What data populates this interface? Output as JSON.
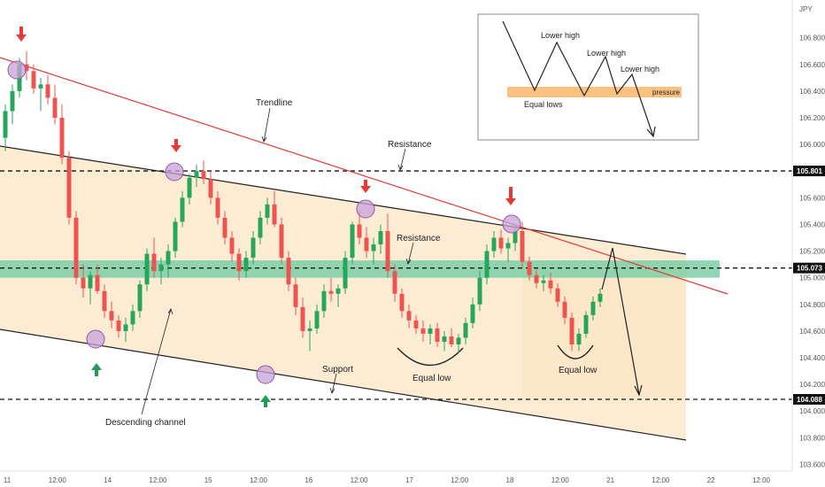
{
  "chart_data": {
    "type": "candlestick",
    "currency_label": "JPY",
    "ylim": [
      103.55,
      107.05
    ],
    "y_ticks": [
      103.6,
      103.8,
      104.0,
      104.2,
      104.4,
      104.6,
      104.8,
      105.0,
      105.2,
      105.4,
      105.6,
      105.8,
      106.0,
      106.2,
      106.4,
      106.6,
      106.8
    ],
    "y_tick_labels": [
      "103.600",
      "103.800",
      "104.000",
      "104.200",
      "104.400",
      "104.600",
      "104.800",
      "105.000",
      "105.200",
      "105.400",
      "105.600",
      "105.800",
      "106.000",
      "106.200",
      "106.400",
      "106.600",
      "106.800"
    ],
    "x_ticks": [
      "11",
      "12:00",
      "14",
      "12:00",
      "15",
      "12:00",
      "16",
      "12:00",
      "17",
      "12:00",
      "18",
      "12:00",
      "21",
      "12:00",
      "22",
      "12:00"
    ],
    "levels": [
      {
        "label": "105.801",
        "value": 105.801,
        "style": "dashed"
      },
      {
        "label": "105.073",
        "value": 105.073,
        "style": "dashed"
      },
      {
        "label": "104.088",
        "value": 104.088,
        "style": "dashed"
      }
    ],
    "resistance_zone": [
      105.0,
      105.13
    ],
    "annotations": {
      "trendline": "Trendline",
      "resistance_top": "Resistance",
      "resistance_mid": "Resistance",
      "support": "Support",
      "descending_channel": "Descending channel",
      "equal_low_1": "Equal low",
      "equal_low_2": "Equal low"
    },
    "inset": {
      "lower_high_1": "Lower high",
      "lower_high_2": "Lower high",
      "lower_high_3": "Lower high",
      "pressure": "pressure",
      "equal_lows": "Equal lows"
    },
    "candles": [
      [
        106.05,
        106.3,
        105.95,
        106.25
      ],
      [
        106.25,
        106.45,
        106.15,
        106.4
      ],
      [
        106.4,
        106.65,
        106.35,
        106.6
      ],
      [
        106.6,
        106.7,
        106.48,
        106.55
      ],
      [
        106.55,
        106.6,
        106.38,
        106.42
      ],
      [
        106.42,
        106.5,
        106.25,
        106.45
      ],
      [
        106.45,
        106.52,
        106.3,
        106.35
      ],
      [
        106.35,
        106.45,
        106.15,
        106.2
      ],
      [
        106.2,
        106.3,
        105.85,
        105.9
      ],
      [
        105.9,
        105.95,
        105.4,
        105.45
      ],
      [
        105.45,
        105.5,
        104.95,
        105.0
      ],
      [
        105.0,
        105.1,
        104.85,
        104.92
      ],
      [
        104.92,
        105.05,
        104.8,
        105.02
      ],
      [
        105.02,
        105.1,
        104.88,
        104.9
      ],
      [
        104.9,
        104.95,
        104.7,
        104.75
      ],
      [
        104.75,
        104.82,
        104.62,
        104.68
      ],
      [
        104.68,
        104.72,
        104.55,
        104.6
      ],
      [
        104.6,
        104.7,
        104.52,
        104.65
      ],
      [
        104.65,
        104.8,
        104.6,
        104.75
      ],
      [
        104.75,
        104.98,
        104.7,
        104.95
      ],
      [
        104.95,
        105.22,
        104.9,
        105.18
      ],
      [
        105.18,
        105.3,
        105.0,
        105.05
      ],
      [
        105.05,
        105.15,
        104.95,
        105.1
      ],
      [
        105.1,
        105.25,
        105.0,
        105.2
      ],
      [
        105.2,
        105.45,
        105.15,
        105.42
      ],
      [
        105.42,
        105.65,
        105.38,
        105.6
      ],
      [
        105.6,
        105.78,
        105.55,
        105.75
      ],
      [
        105.75,
        105.85,
        105.68,
        105.8
      ],
      [
        105.8,
        105.88,
        105.7,
        105.74
      ],
      [
        105.74,
        105.8,
        105.55,
        105.6
      ],
      [
        105.6,
        105.65,
        105.4,
        105.45
      ],
      [
        105.45,
        105.5,
        105.25,
        105.3
      ],
      [
        105.3,
        105.35,
        105.12,
        105.18
      ],
      [
        105.18,
        105.22,
        104.98,
        105.05
      ],
      [
        105.05,
        105.2,
        105.0,
        105.15
      ],
      [
        105.15,
        105.35,
        105.1,
        105.3
      ],
      [
        105.3,
        105.5,
        105.25,
        105.45
      ],
      [
        105.45,
        105.6,
        105.4,
        105.55
      ],
      [
        105.55,
        105.65,
        105.38,
        105.4
      ],
      [
        105.4,
        105.45,
        105.1,
        105.15
      ],
      [
        105.15,
        105.2,
        104.9,
        104.95
      ],
      [
        104.95,
        105.0,
        104.72,
        104.78
      ],
      [
        104.78,
        104.85,
        104.55,
        104.6
      ],
      [
        104.6,
        104.68,
        104.45,
        104.62
      ],
      [
        104.62,
        104.8,
        104.58,
        104.75
      ],
      [
        104.75,
        104.95,
        104.7,
        104.9
      ],
      [
        104.9,
        105.0,
        104.82,
        104.88
      ],
      [
        104.88,
        104.95,
        104.78,
        104.92
      ],
      [
        104.92,
        105.2,
        104.88,
        105.15
      ],
      [
        105.15,
        105.42,
        105.1,
        105.4
      ],
      [
        105.4,
        105.5,
        105.25,
        105.3
      ],
      [
        105.3,
        105.38,
        105.15,
        105.2
      ],
      [
        105.2,
        105.3,
        105.1,
        105.25
      ],
      [
        105.25,
        105.4,
        105.18,
        105.35
      ],
      [
        105.35,
        105.48,
        105.0,
        105.05
      ],
      [
        105.05,
        105.1,
        104.82,
        104.88
      ],
      [
        104.88,
        104.92,
        104.7,
        104.75
      ],
      [
        104.75,
        104.8,
        104.62,
        104.68
      ],
      [
        104.68,
        104.72,
        104.58,
        104.62
      ],
      [
        104.62,
        104.68,
        104.52,
        104.58
      ],
      [
        104.58,
        104.65,
        104.5,
        104.62
      ],
      [
        104.62,
        104.66,
        104.48,
        104.52
      ],
      [
        104.52,
        104.6,
        104.45,
        104.56
      ],
      [
        104.56,
        104.62,
        104.48,
        104.5
      ],
      [
        104.5,
        104.58,
        104.44,
        104.55
      ],
      [
        104.55,
        104.7,
        104.5,
        104.66
      ],
      [
        104.66,
        104.85,
        104.62,
        104.8
      ],
      [
        104.8,
        105.05,
        104.75,
        105.0
      ],
      [
        105.0,
        105.25,
        104.95,
        105.2
      ],
      [
        105.2,
        105.35,
        105.15,
        105.3
      ],
      [
        105.3,
        105.36,
        105.18,
        105.22
      ],
      [
        105.22,
        105.3,
        105.12,
        105.26
      ],
      [
        105.26,
        105.4,
        105.2,
        105.35
      ],
      [
        105.35,
        105.42,
        105.08,
        105.12
      ],
      [
        105.12,
        105.16,
        104.98,
        105.02
      ],
      [
        105.02,
        105.06,
        104.92,
        104.96
      ],
      [
        104.96,
        105.02,
        104.9,
        104.98
      ],
      [
        104.98,
        105.04,
        104.88,
        104.92
      ],
      [
        104.92,
        104.96,
        104.78,
        104.82
      ],
      [
        104.82,
        104.86,
        104.65,
        104.7
      ],
      [
        104.7,
        104.74,
        104.45,
        104.5
      ],
      [
        104.5,
        104.62,
        104.45,
        104.58
      ],
      [
        104.58,
        104.75,
        104.55,
        104.72
      ],
      [
        104.72,
        104.86,
        104.68,
        104.82
      ],
      [
        104.82,
        104.92,
        104.78,
        104.88
      ]
    ]
  }
}
